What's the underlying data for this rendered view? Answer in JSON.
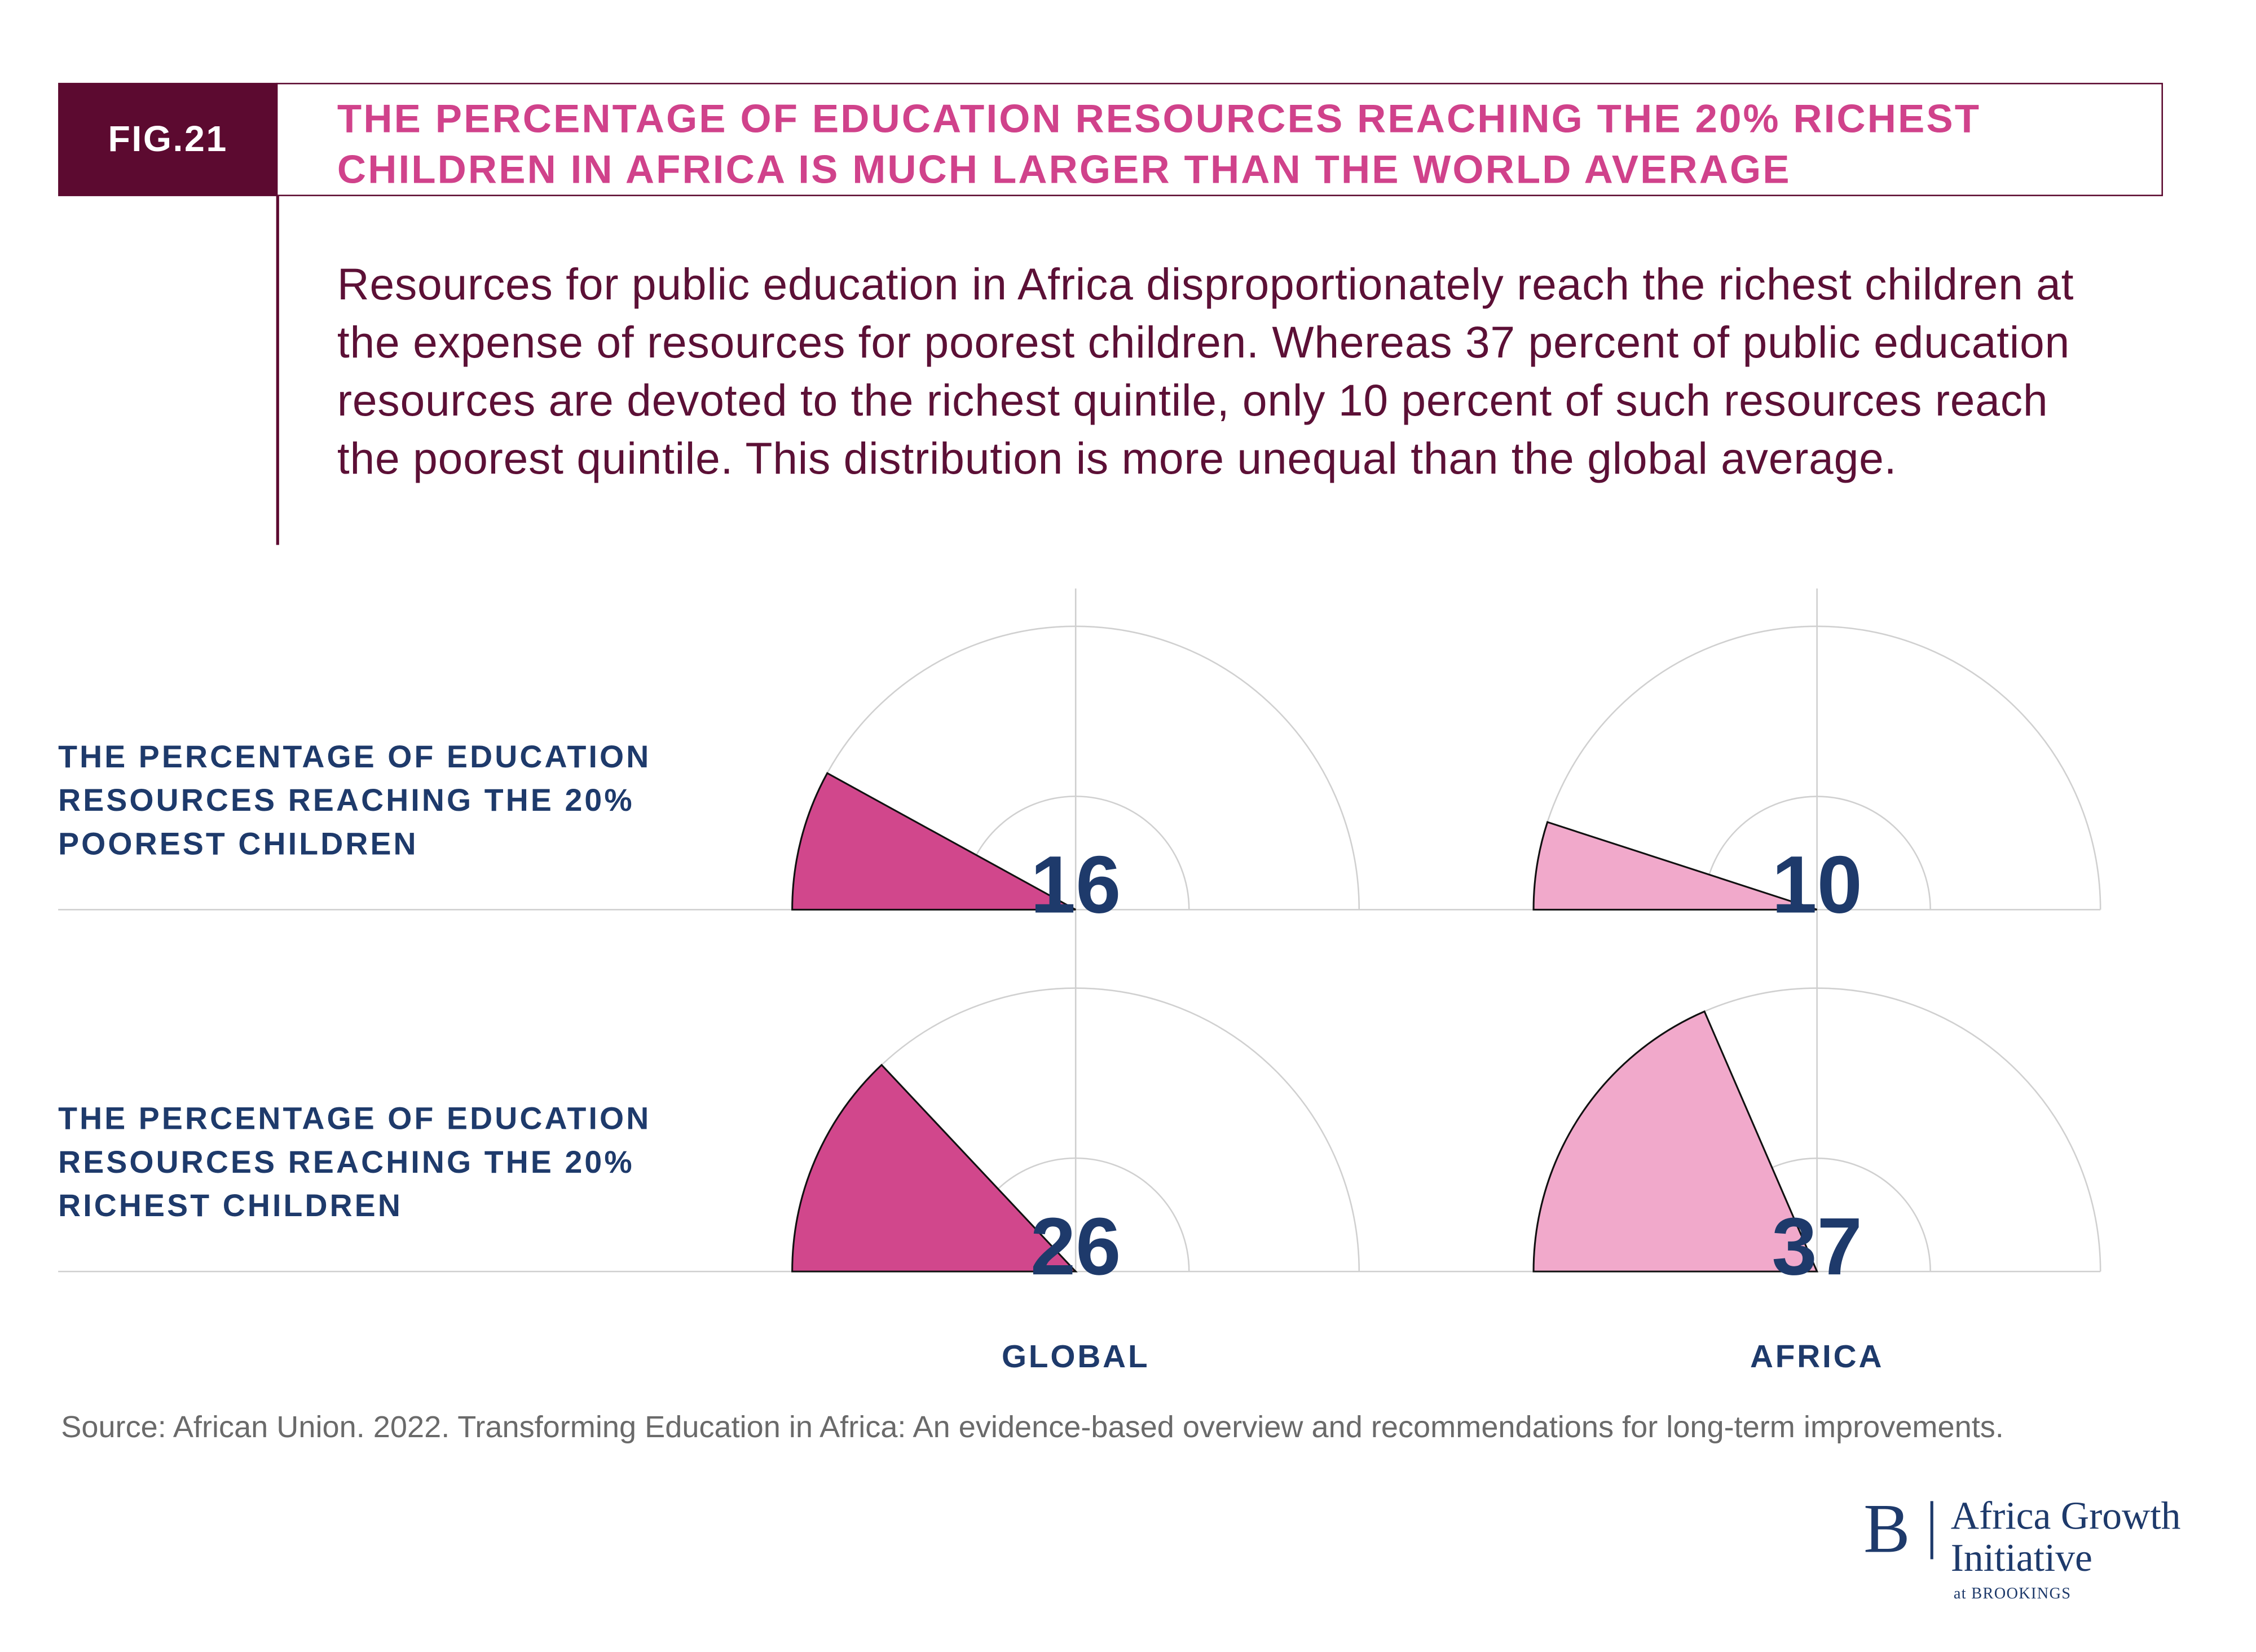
{
  "header": {
    "figure": "FIG.21",
    "title": "THE PERCENTAGE OF EDUCATION RESOURCES REACHING THE 20% RICHEST CHILDREN IN AFRICA IS MUCH LARGER THAN THE WORLD AVERAGE"
  },
  "description": "Resources for public education in Africa disproportionately reach the richest children at the expense of resources for poorest children. Whereas 37 percent of public education resources are devoted to the richest quintile, only 10 percent of such resources reach the poorest quintile. This distribution is more unequal than the global average.",
  "chart_data": {
    "type": "half-pie",
    "categories": [
      "THE PERCENTAGE OF EDUCATION RESOURCES REACHING THE 20% POOREST CHILDREN",
      "THE PERCENTAGE OF EDUCATION RESOURCES REACHING THE 20% RICHEST CHILDREN"
    ],
    "series": [
      {
        "name": "GLOBAL",
        "color": "#d1478c",
        "values": [
          16,
          26
        ]
      },
      {
        "name": "AFRICA",
        "color": "#f1a9cb",
        "values": [
          10,
          37
        ]
      }
    ],
    "ylim": [
      0,
      100
    ]
  },
  "source": "Source: African Union. 2022. Transforming Education in Africa: An evidence-based overview and recommendations for long-term improvements.",
  "logo": {
    "mark": "B",
    "name": "Africa Growth Initiative",
    "sub": "at BROOKINGS"
  }
}
